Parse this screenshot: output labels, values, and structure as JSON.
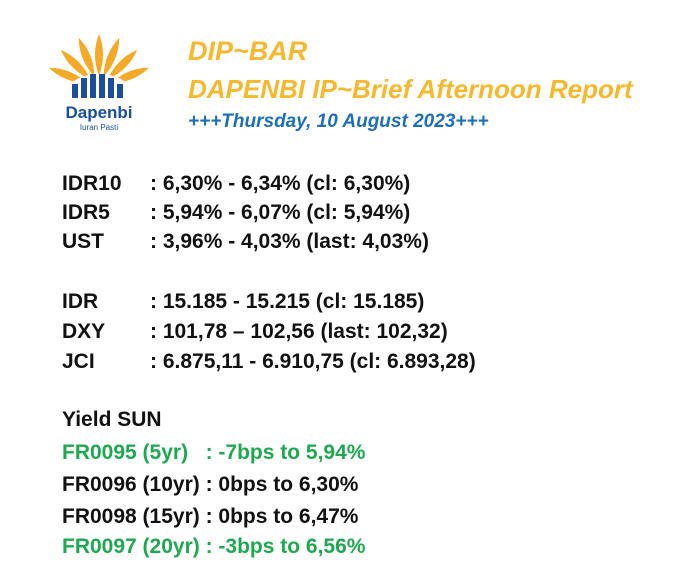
{
  "header": {
    "line1": "DIP~BAR",
    "line2": "DAPENBI IP~Brief Afternoon Report",
    "line3": "+++Thursday, 10 August 2023+++"
  },
  "logo": {
    "brand": "Dapenbi",
    "tagline": "Iuran Pasti",
    "colors": {
      "petal": "#f4a928",
      "bars": "#1b4f9c",
      "text": "#1b4f9c"
    }
  },
  "rates": [
    {
      "label": "IDR10",
      "value": ": 6,30% - 6,34% (cl: 6,30%)"
    },
    {
      "label": "IDR5",
      "value": ": 5,94% - 6,07% (cl: 5,94%)"
    },
    {
      "label": "UST",
      "value": ": 3,96% - 4,03% (last: 4,03%)"
    }
  ],
  "markets": [
    {
      "label": "IDR",
      "value": ": 15.185 - 15.215 (cl: 15.185)"
    },
    {
      "label": "DXY",
      "value": ": 101,78 – 102,56 (last: 102,32)"
    },
    {
      "label": "JCI",
      "value": ": 6.875,11 - 6.910,75 (cl: 6.893,28)"
    }
  ],
  "yield_sun": {
    "title": "Yield SUN",
    "items": [
      {
        "text": "FR0095 (5yr)   : -7bps to 5,94%",
        "color": "#1fa84f"
      },
      {
        "text": "FR0096 (10yr) : 0bps to 6,30%",
        "color": "#111111"
      },
      {
        "text": "FR0098 (15yr) : 0bps to 6,47%",
        "color": "#111111"
      },
      {
        "text": "FR0097 (20yr) : -3bps to 6,56%",
        "color": "#1fa84f"
      }
    ]
  }
}
